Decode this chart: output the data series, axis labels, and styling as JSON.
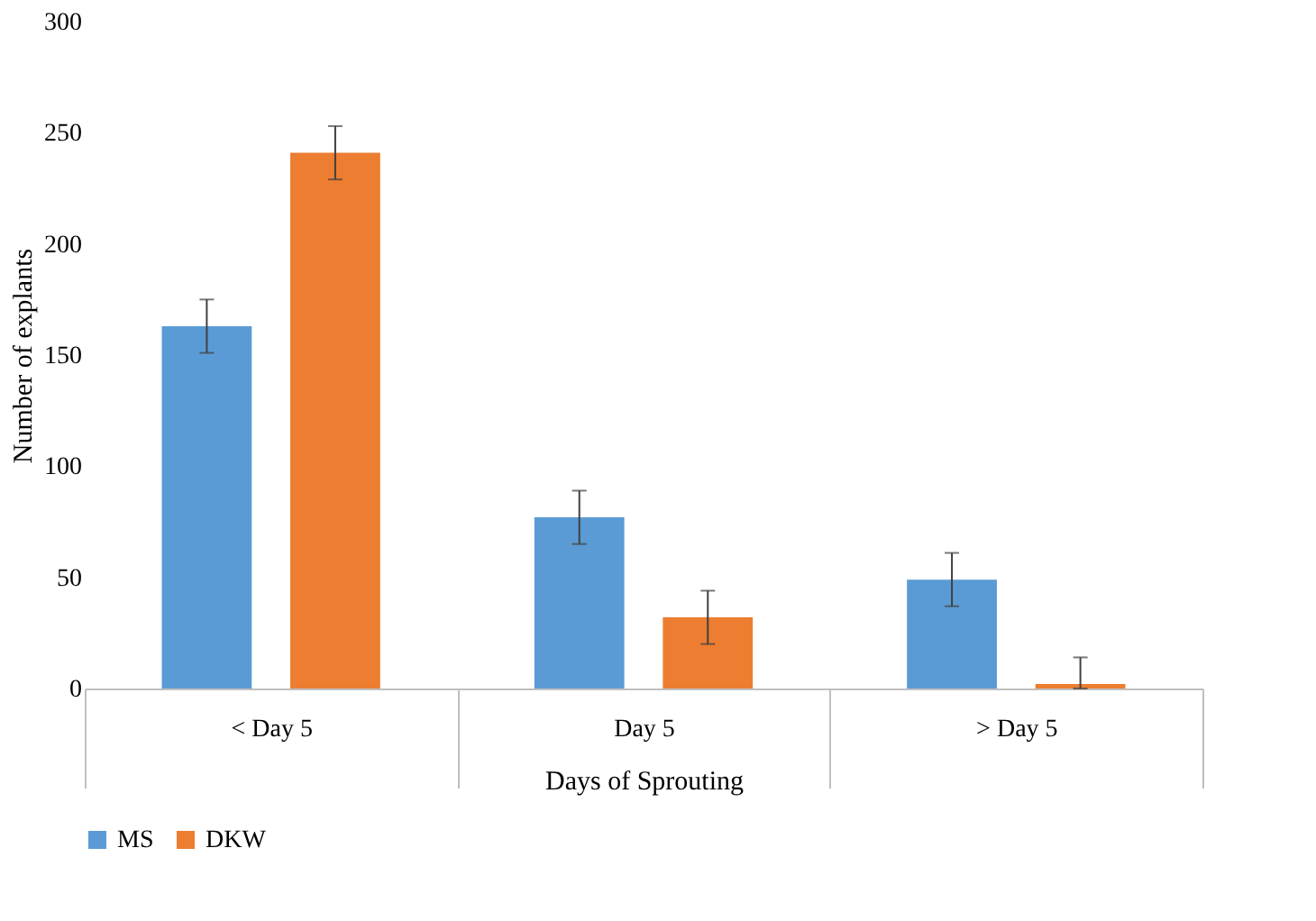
{
  "chart_data": {
    "type": "bar",
    "xlabel": "Days of Sprouting",
    "ylabel": "Number of explants",
    "categories": [
      "< Day 5",
      "Day 5",
      "> Day 5"
    ],
    "series": [
      {
        "name": "MS",
        "color": "#5b9bd5",
        "values": [
          163,
          77,
          49
        ],
        "errors": [
          12,
          12,
          12
        ]
      },
      {
        "name": "DKW",
        "color": "#ed7d31",
        "values": [
          241,
          32,
          2
        ],
        "errors": [
          12,
          12,
          [
            0,
            14
          ]
        ]
      }
    ],
    "ylim": [
      0,
      300
    ],
    "yticks": [
      0,
      50,
      100,
      150,
      200,
      250,
      300
    ],
    "grid": false,
    "legend": "bottom"
  }
}
